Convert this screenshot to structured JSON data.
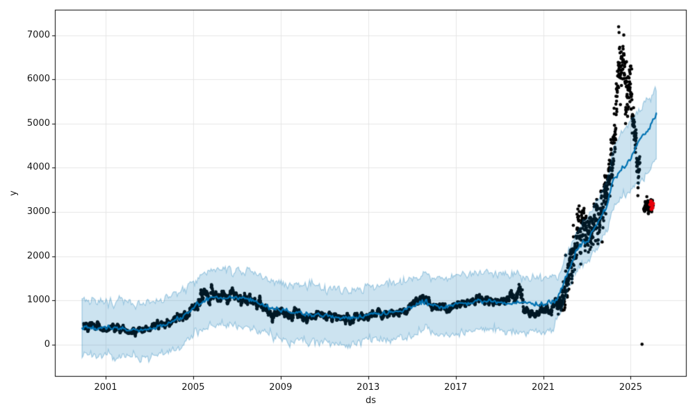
{
  "figure": {
    "background": "#ffffff",
    "description": "Prophet-style time series forecast plot: black actual data points, blue forecast line with light-blue uncertainty interval, red highlighted recent points"
  },
  "chart_data": {
    "type": "scatter",
    "title": "",
    "xlabel": "ds",
    "ylabel": "y",
    "xlim": [
      1998.68,
      2027.56
    ],
    "ylim": [
      -723,
      7575
    ],
    "grid": true,
    "legend": null,
    "xticks": {
      "values": [
        2001,
        2005,
        2009,
        2013,
        2017,
        2021,
        2025
      ],
      "labels": [
        "2001",
        "2005",
        "2009",
        "2013",
        "2017",
        "2021",
        "2025"
      ]
    },
    "yticks": {
      "values": [
        0,
        1000,
        2000,
        3000,
        4000,
        5000,
        6000,
        7000
      ],
      "labels": [
        "0",
        "1000",
        "2000",
        "3000",
        "4000",
        "5000",
        "6000",
        "7000"
      ]
    },
    "colors": {
      "forecast_line": "#0072B2",
      "band_fill": "rgba(0,114,178,0.2)",
      "band_edge": "rgba(0,114,178,0.32)",
      "actual_points": "#000000",
      "highlight_points": "#e8000b",
      "grid": "#e6e6e6",
      "spine": "#000000"
    },
    "forecast": {
      "x": [
        1999.92,
        2000.5,
        2001,
        2001.5,
        2002,
        2002.5,
        2003,
        2003.5,
        2004,
        2004.5,
        2005,
        2005.5,
        2006,
        2006.5,
        2007,
        2007.5,
        2008,
        2008.5,
        2009,
        2009.5,
        2010,
        2010.5,
        2011,
        2011.5,
        2012,
        2012.5,
        2013,
        2013.5,
        2014,
        2014.5,
        2015,
        2015.5,
        2016,
        2016.5,
        2017,
        2017.5,
        2018,
        2018.5,
        2019,
        2019.5,
        2020,
        2020.5,
        2021,
        2021.4,
        2021.6,
        2022,
        2022.5,
        2023,
        2023.5,
        2023.9,
        2024.2,
        2024.6,
        2025,
        2025.2,
        2025.45,
        2025.8,
        2026.17
      ],
      "yhat": [
        420,
        370,
        360,
        390,
        330,
        335,
        360,
        420,
        520,
        650,
        820,
        1000,
        1050,
        1080,
        1060,
        1040,
        940,
        830,
        780,
        740,
        720,
        680,
        660,
        620,
        600,
        610,
        700,
        720,
        730,
        770,
        860,
        980,
        900,
        840,
        930,
        940,
        990,
        1000,
        960,
        930,
        960,
        910,
        930,
        950,
        1000,
        1450,
        2120,
        2350,
        2740,
        3100,
        3750,
        3950,
        4180,
        4450,
        4680,
        4850,
        5200
      ],
      "yhat_lower": [
        -230,
        -270,
        -265,
        -240,
        -290,
        -285,
        -260,
        -205,
        -110,
        20,
        190,
        370,
        420,
        450,
        430,
        410,
        310,
        200,
        150,
        110,
        90,
        50,
        30,
        -10,
        -30,
        -20,
        60,
        80,
        90,
        130,
        220,
        340,
        260,
        200,
        290,
        300,
        350,
        360,
        320,
        290,
        320,
        270,
        290,
        310,
        560,
        1010,
        1670,
        1880,
        2240,
        2580,
        3100,
        3300,
        3500,
        3600,
        3700,
        3880,
        4250
      ],
      "yhat_upper": [
        1000,
        975,
        965,
        990,
        940,
        945,
        965,
        1030,
        1120,
        1260,
        1430,
        1620,
        1675,
        1700,
        1680,
        1660,
        1560,
        1450,
        1400,
        1360,
        1340,
        1300,
        1280,
        1245,
        1230,
        1240,
        1330,
        1350,
        1360,
        1400,
        1490,
        1610,
        1530,
        1470,
        1560,
        1570,
        1620,
        1630,
        1590,
        1560,
        1590,
        1540,
        1560,
        1580,
        1470,
        1900,
        2570,
        2820,
        3240,
        3640,
        4400,
        4800,
        5000,
        5150,
        5300,
        5550,
        5800
      ]
    },
    "actuals": {
      "marker_color": "#000000",
      "runs": [
        {
          "density": 115,
          "rho": 0.85,
          "keys": [
            [
              2000.0,
              420,
              55
            ],
            [
              2000.35,
              430,
              55
            ],
            [
              2000.7,
              380,
              50
            ],
            [
              2001.0,
              350,
              45
            ],
            [
              2001.3,
              420,
              50
            ],
            [
              2001.6,
              350,
              45
            ],
            [
              2002.0,
              315,
              45
            ],
            [
              2002.4,
              330,
              45
            ],
            [
              2002.8,
              330,
              45
            ],
            [
              2003.2,
              370,
              50
            ],
            [
              2003.6,
              430,
              55
            ],
            [
              2004.0,
              520,
              60
            ],
            [
              2004.4,
              640,
              60
            ],
            [
              2004.8,
              790,
              70
            ],
            [
              2005.1,
              900,
              70
            ],
            [
              2005.45,
              1080,
              90
            ],
            [
              2005.7,
              1180,
              100
            ],
            [
              2005.9,
              1280,
              90
            ],
            [
              2006.1,
              1050,
              80
            ],
            [
              2006.5,
              1060,
              80
            ],
            [
              2006.8,
              1130,
              80
            ],
            [
              2007.1,
              1060,
              70
            ],
            [
              2007.4,
              1070,
              80
            ],
            [
              2007.7,
              1020,
              70
            ],
            [
              2008.0,
              920,
              70
            ],
            [
              2008.3,
              830,
              65
            ],
            [
              2008.55,
              640,
              90
            ],
            [
              2008.8,
              740,
              60
            ],
            [
              2009.1,
              750,
              55
            ],
            [
              2009.5,
              690,
              55
            ],
            [
              2009.9,
              720,
              55
            ],
            [
              2010.3,
              640,
              50
            ],
            [
              2010.7,
              645,
              50
            ],
            [
              2011.1,
              635,
              50
            ],
            [
              2011.5,
              600,
              50
            ],
            [
              2011.9,
              580,
              50
            ],
            [
              2012.3,
              600,
              50
            ],
            [
              2012.7,
              625,
              50
            ],
            [
              2013.1,
              660,
              50
            ],
            [
              2013.5,
              700,
              55
            ],
            [
              2013.9,
              695,
              50
            ],
            [
              2014.3,
              710,
              50
            ],
            [
              2014.7,
              780,
              55
            ],
            [
              2015.1,
              930,
              60
            ],
            [
              2015.45,
              1030,
              60
            ],
            [
              2015.8,
              960,
              55
            ],
            [
              2016.1,
              870,
              55
            ],
            [
              2016.5,
              790,
              55
            ],
            [
              2016.8,
              830,
              55
            ],
            [
              2017.2,
              890,
              55
            ],
            [
              2017.6,
              930,
              55
            ],
            [
              2018.0,
              985,
              60
            ],
            [
              2018.35,
              1045,
              60
            ],
            [
              2018.7,
              950,
              55
            ],
            [
              2019.0,
              950,
              55
            ],
            [
              2019.35,
              1010,
              60
            ],
            [
              2019.55,
              1130,
              80
            ],
            [
              2019.75,
              1040,
              60
            ],
            [
              2019.95,
              1230,
              110
            ],
            [
              2020.1,
              950,
              90
            ],
            [
              2020.3,
              700,
              70
            ],
            [
              2020.6,
              690,
              55
            ],
            [
              2021.0,
              800,
              55
            ],
            [
              2021.3,
              860,
              55
            ],
            [
              2021.55,
              950,
              80
            ]
          ]
        },
        {
          "density": 170,
          "rho": 0.55,
          "keys": [
            [
              2021.55,
              950,
              80
            ],
            [
              2021.8,
              860,
              100
            ],
            [
              2022.0,
              1100,
              260
            ],
            [
              2022.2,
              1700,
              280
            ],
            [
              2022.45,
              2100,
              260
            ],
            [
              2022.8,
              2750,
              280
            ],
            [
              2023.05,
              2600,
              230
            ],
            [
              2023.3,
              2550,
              200
            ],
            [
              2023.6,
              3000,
              260
            ],
            [
              2023.9,
              3350,
              240
            ],
            [
              2024.1,
              4000,
              300
            ],
            [
              2024.3,
              4900,
              380
            ],
            [
              2024.5,
              6300,
              380
            ],
            [
              2024.65,
              6550,
              330
            ],
            [
              2024.8,
              5600,
              350
            ],
            [
              2025.0,
              5650,
              300
            ],
            [
              2025.12,
              5200,
              280
            ],
            [
              2025.28,
              4250,
              240
            ],
            [
              2025.42,
              4000,
              140
            ]
          ]
        },
        {
          "density": 180,
          "rho": 0.7,
          "keys": [
            [
              2025.6,
              3050,
              100
            ],
            [
              2025.75,
              3120,
              110
            ],
            [
              2025.9,
              3150,
              90
            ],
            [
              2026.03,
              3120,
              70
            ]
          ]
        }
      ],
      "extra_points": [
        [
          2024.45,
          7190
        ],
        [
          2024.47,
          7060
        ],
        [
          2025.33,
          3370
        ],
        [
          2025.52,
          10
        ]
      ]
    },
    "highlights": {
      "color": "#e8000b",
      "points": [
        [
          2025.9,
          3170
        ],
        [
          2025.93,
          3240
        ],
        [
          2025.95,
          3070
        ],
        [
          2025.97,
          3150
        ],
        [
          2026.0,
          3100
        ],
        [
          2026.02,
          3190
        ]
      ]
    }
  }
}
